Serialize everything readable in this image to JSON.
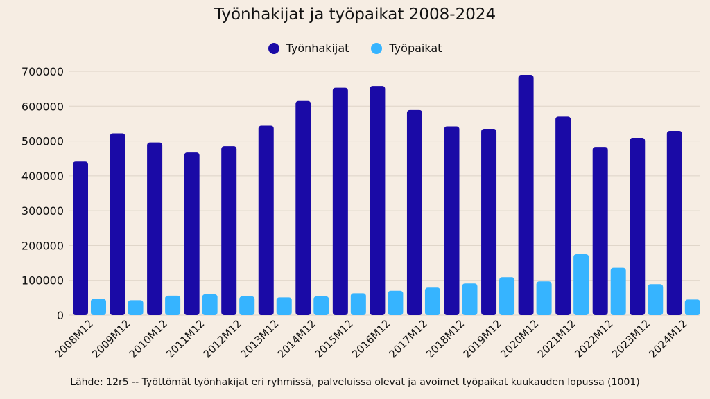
{
  "chart_data": {
    "type": "bar",
    "title": "Työnhakijat ja työpaikat 2008-2024",
    "xlabel": "",
    "ylabel": "",
    "ylim": [
      0,
      700000
    ],
    "yticks": [
      0,
      100000,
      200000,
      300000,
      400000,
      500000,
      600000,
      700000
    ],
    "ytick_labels": [
      "0",
      "100000",
      "200000",
      "300000",
      "400000",
      "500000",
      "600000",
      "700000"
    ],
    "grid": true,
    "legend_position": "top-center",
    "categories": [
      "2008M12",
      "2009M12",
      "2010M12",
      "2011M12",
      "2012M12",
      "2013M12",
      "2014M12",
      "2015M12",
      "2016M12",
      "2017M12",
      "2018M12",
      "2019M12",
      "2020M12",
      "2021M12",
      "2022M12",
      "2023M12",
      "2024M12"
    ],
    "series": [
      {
        "name": "Työnhakijat",
        "color": "#1a0aa6",
        "values": [
          441000,
          522000,
          496000,
          467000,
          485000,
          544000,
          615000,
          653000,
          658000,
          589000,
          542000,
          535000,
          690000,
          570000,
          483000,
          509000,
          529000
        ]
      },
      {
        "name": "Työpaikat",
        "color": "#36b4ff",
        "values": [
          47000,
          43000,
          56000,
          60000,
          54000,
          51000,
          54000,
          63000,
          70000,
          79000,
          91000,
          109000,
          97000,
          175000,
          136000,
          89000,
          45000
        ]
      }
    ]
  },
  "source": "Lähde: 12r5 -- Työttömät työnhakijat eri ryhmissä, palveluissa olevat ja avoimet työpaikat kuukauden lopussa (1001)",
  "colors": {
    "background": "#f6ede3",
    "grid": "#ddd3c7"
  }
}
